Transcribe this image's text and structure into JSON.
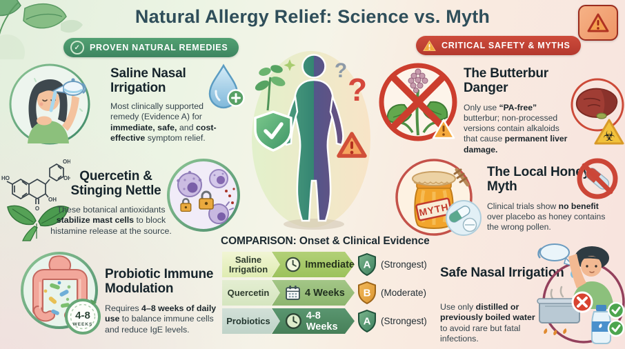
{
  "title": "Natural Allergy Relief: Science vs. Myth",
  "headers": {
    "left": {
      "label": "PROVEN NATURAL REMEDIES",
      "icon": "check-circle-icon",
      "color": "#47906a"
    },
    "right": {
      "label": "CRITICAL SAFETY & MYTHS",
      "icon": "warning-triangle-icon",
      "color": "#c24034"
    }
  },
  "check_glyph": "✓",
  "remedies": [
    {
      "title": "Saline Nasal Irrigation",
      "icon": "water-drop-plus-icon",
      "body": [
        {
          "t": "Most clinically supported remedy (Evidence A) for ",
          "b": false
        },
        {
          "t": "immediate, safe,",
          "b": true
        },
        {
          "t": " and ",
          "b": false
        },
        {
          "t": "cost-effective",
          "b": true
        },
        {
          "t": " symptom relief.",
          "b": false
        }
      ]
    },
    {
      "title": "Quercetin & Stinging Nettle",
      "icon": "mast-cell-lock-illustration",
      "molecule_labels": [
        "HO",
        "OH",
        "OH",
        "OH",
        "O"
      ],
      "body": [
        {
          "t": "These botanical antioxidants ",
          "b": false
        },
        {
          "t": "stabilize mast cells",
          "b": true
        },
        {
          "t": " to block histamine release at the source.",
          "b": false
        }
      ]
    },
    {
      "title": "Probiotic Immune Modulation",
      "icon": "gut-probiotics-illustration",
      "badge": {
        "value": "4-8",
        "unit": "WEEKS"
      },
      "body": [
        {
          "t": "Requires ",
          "b": false
        },
        {
          "t": "4–8 weeks of daily use",
          "b": true
        },
        {
          "t": " to balance immune cells and reduce IgE levels.",
          "b": false
        }
      ]
    }
  ],
  "risks": [
    {
      "title": "The Butterbur Danger",
      "icon": "liver-biohazard-illustration",
      "body": [
        {
          "t": "Only use ",
          "b": false
        },
        {
          "t": "“PA-free”",
          "b": true
        },
        {
          "t": " butterbur; non-processed versions contain alkaloids that cause ",
          "b": false
        },
        {
          "t": "permanent liver damage.",
          "b": true
        }
      ]
    },
    {
      "title": "The Local Honey Myth",
      "icon": "no-pill-icon",
      "stamp": "MYTH",
      "body": [
        {
          "t": "Clinical trials show ",
          "b": false
        },
        {
          "t": "no benefit",
          "b": true
        },
        {
          "t": " over placebo as honey contains the wrong pollen.",
          "b": false
        }
      ]
    },
    {
      "title": "Safe Nasal Irrigation",
      "icon": "boil-water-illustration",
      "body": [
        {
          "t": "Use only ",
          "b": false
        },
        {
          "t": "distilled or previously boiled water",
          "b": true
        },
        {
          "t": " to avoid rare but fatal infections.",
          "b": false
        }
      ]
    }
  ],
  "comparison": {
    "title": "COMPARISON: Onset & Clinical Evidence",
    "rows": [
      {
        "label": "Saline Irrigation",
        "onset": "Immediate",
        "onset_icon": "clock-icon",
        "grade": "A",
        "grade_note": "(Strongest)"
      },
      {
        "label": "Quercetin",
        "onset": "4 Weeks",
        "onset_icon": "calendar-icon",
        "grade": "B",
        "grade_note": "(Moderate)"
      },
      {
        "label": "Probiotics",
        "onset": "4-8 Weeks",
        "onset_icon": "clock-icon",
        "grade": "A",
        "grade_note": "(Strongest)"
      }
    ]
  },
  "colors": {
    "title_text": "#2f4e5a",
    "proven_green": "#47906a",
    "safety_red": "#c24034",
    "grade_a_green": "#3d7f5e",
    "grade_b_orange": "#e0a23f",
    "warning_orange": "#f2a93b",
    "bg_left": "#e3efdd",
    "bg_right": "#f8e3de"
  }
}
